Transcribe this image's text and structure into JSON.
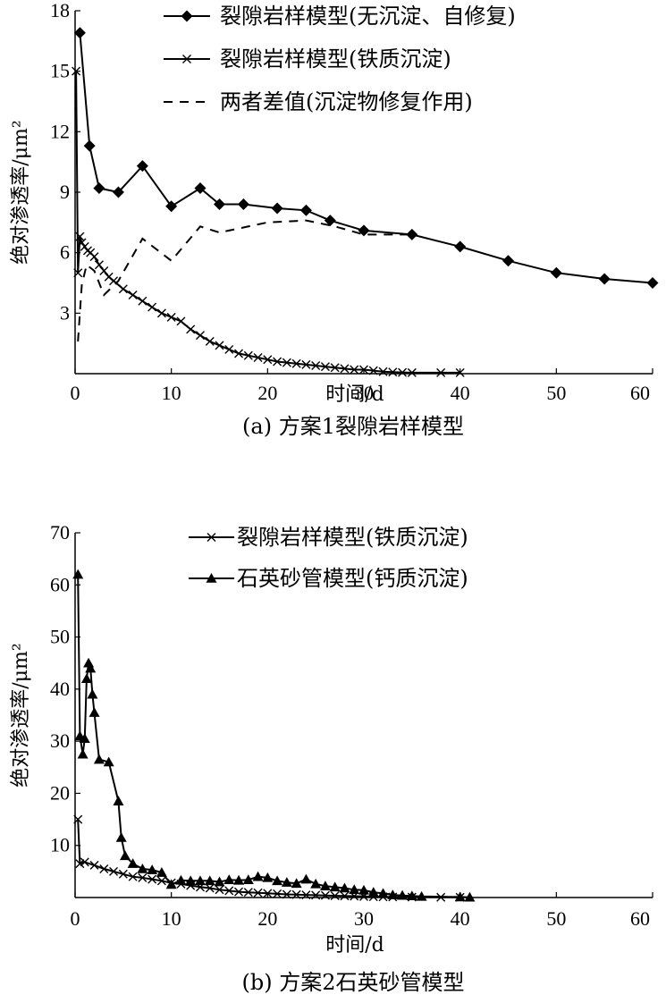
{
  "charts": [
    {
      "type": "line",
      "caption": "(a) 方案1裂隙岩样模型",
      "xlabel": "时间/d",
      "ylabel": "绝对渗透率/μm²",
      "xlim": [
        0,
        60
      ],
      "ylim": [
        0,
        18
      ],
      "xticks": [
        "0",
        "10",
        "20",
        "30",
        "40",
        "50",
        "60"
      ],
      "yticks": [
        "3",
        "6",
        "9",
        "12",
        "15",
        "18"
      ],
      "legend_position": "top-right",
      "series": [
        {
          "name": "裂隙岩样模型(无沉淀、自修复)",
          "marker": "diamond",
          "dash": "",
          "x": [
            0.5,
            1.5,
            2.5,
            4.5,
            7.0,
            10.0,
            13.0,
            15.0,
            17.5,
            21.0,
            24.0,
            26.5,
            30.0,
            35.0,
            40.0,
            45.0,
            50.0,
            55.0,
            60.0
          ],
          "y": [
            16.9,
            11.3,
            9.2,
            9.0,
            10.3,
            8.3,
            9.2,
            8.4,
            8.4,
            8.2,
            8.1,
            7.6,
            7.1,
            6.9,
            6.3,
            5.6,
            5.0,
            4.7,
            4.5
          ]
        },
        {
          "name": "裂隙岩样模型(铁质沉淀)",
          "marker": "cross",
          "dash": "",
          "x": [
            0.1,
            0.3,
            0.5,
            0.7,
            1.0,
            1.3,
            1.6,
            2.0,
            2.5,
            3.0,
            3.5,
            4.0,
            5.0,
            6.0,
            7.0,
            8.0,
            9.0,
            10.0,
            11.0,
            12.0,
            13.0,
            14.0,
            15.0,
            16.0,
            17.0,
            18.0,
            19.0,
            20.0,
            21.0,
            22.0,
            23.0,
            24.0,
            25.0,
            26.0,
            27.0,
            28.0,
            29.0,
            30.0,
            31.0,
            32.0,
            33.0,
            34.0,
            35.0,
            38.0,
            40.0
          ],
          "y": [
            15.0,
            5.0,
            6.8,
            6.5,
            6.3,
            6.1,
            6.0,
            5.8,
            5.4,
            5.1,
            4.8,
            4.6,
            4.2,
            3.9,
            3.6,
            3.3,
            3.0,
            2.8,
            2.6,
            2.2,
            1.9,
            1.6,
            1.4,
            1.2,
            1.0,
            0.9,
            0.8,
            0.7,
            0.6,
            0.55,
            0.5,
            0.45,
            0.4,
            0.35,
            0.3,
            0.25,
            0.2,
            0.2,
            0.15,
            0.1,
            0.08,
            0.06,
            0.05,
            0.05,
            0.05
          ]
        },
        {
          "name": "两者差值(沉淀物修复作用)",
          "marker": "none",
          "dash": "10,8",
          "x": [
            0.3,
            0.7,
            1.2,
            2.0,
            3.0,
            4.5,
            7.0,
            10.0,
            13.0,
            15.0,
            20.0,
            24.0,
            27.0,
            30.0,
            33.0,
            35.0
          ],
          "y": [
            1.6,
            4.4,
            5.4,
            5.1,
            3.9,
            4.6,
            6.7,
            5.6,
            7.3,
            7.0,
            7.5,
            7.6,
            7.3,
            6.9,
            6.9,
            6.9
          ]
        }
      ]
    },
    {
      "type": "line",
      "caption": "(b) 方案2石英砂管模型",
      "xlabel": "时间/d",
      "ylabel": "绝对渗透率/μm²",
      "xlim": [
        0,
        60
      ],
      "ylim": [
        0,
        70
      ],
      "xticks": [
        "0",
        "10",
        "20",
        "30",
        "40",
        "50",
        "60"
      ],
      "yticks": [
        "10",
        "20",
        "30",
        "40",
        "50",
        "60",
        "70"
      ],
      "legend_position": "top-right",
      "series": [
        {
          "name": "裂隙岩样模型(铁质沉淀)",
          "marker": "cross",
          "dash": "",
          "x": [
            0.3,
            0.5,
            1.0,
            2.0,
            3.0,
            4.0,
            5.0,
            6.0,
            7.0,
            8.0,
            9.0,
            10.0,
            11.0,
            12.0,
            13.0,
            14.0,
            15.0,
            16.0,
            17.0,
            18.0,
            19.0,
            20.0,
            21.0,
            22.0,
            23.0,
            24.0,
            25.0,
            26.0,
            27.0,
            28.0,
            29.0,
            30.0,
            31.0,
            32.0,
            33.0,
            35.0,
            38.0,
            40.0
          ],
          "y": [
            15.0,
            6.5,
            6.8,
            6.2,
            5.5,
            5.0,
            4.5,
            4.0,
            3.8,
            3.5,
            3.2,
            2.8,
            2.6,
            2.3,
            2.0,
            1.8,
            1.5,
            1.3,
            1.1,
            1.0,
            0.9,
            0.8,
            0.7,
            0.6,
            0.55,
            0.5,
            0.45,
            0.4,
            0.35,
            0.3,
            0.25,
            0.2,
            0.15,
            0.12,
            0.1,
            0.08,
            0.05,
            0.05
          ]
        },
        {
          "name": "石英砂管模型(钙质沉淀)",
          "marker": "triangle",
          "dash": "",
          "x": [
            0.3,
            0.5,
            0.8,
            1.0,
            1.2,
            1.4,
            1.6,
            1.8,
            2.0,
            2.5,
            3.5,
            4.5,
            4.8,
            5.2,
            6.0,
            7.0,
            8.0,
            9.0,
            10.0,
            11.0,
            12.0,
            13.0,
            14.0,
            15.0,
            16.0,
            17.0,
            18.0,
            19.0,
            20.0,
            21.0,
            22.0,
            23.0,
            24.0,
            25.0,
            26.0,
            27.0,
            28.0,
            29.0,
            30.0,
            31.0,
            32.0,
            33.0,
            34.0,
            35.0,
            36.0,
            40.0,
            41.0
          ],
          "y": [
            62.0,
            31.0,
            27.5,
            30.5,
            42.0,
            45.0,
            44.0,
            39.0,
            35.5,
            26.5,
            26.0,
            18.5,
            11.5,
            8.0,
            6.5,
            5.5,
            5.3,
            4.8,
            2.5,
            3.3,
            3.2,
            3.2,
            3.2,
            3.0,
            3.4,
            3.3,
            3.4,
            4.0,
            3.8,
            3.2,
            2.9,
            2.7,
            3.5,
            2.6,
            2.2,
            2.0,
            1.8,
            1.5,
            1.4,
            1.0,
            0.8,
            0.5,
            0.4,
            0.3,
            0.2,
            0.1,
            0.05
          ]
        }
      ]
    }
  ]
}
